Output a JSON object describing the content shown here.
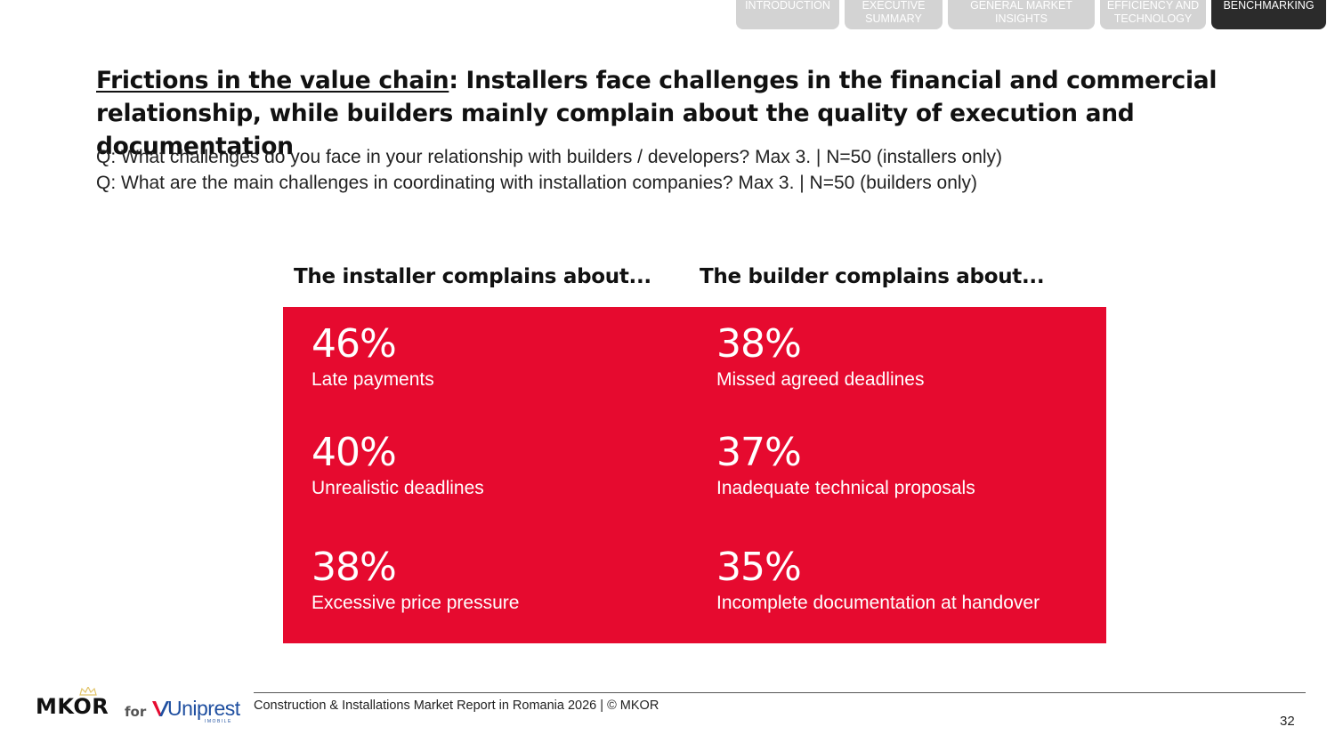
{
  "nav": {
    "tabs": [
      {
        "label": "INTRODUCTION"
      },
      {
        "label": "EXECUTIVE SUMMARY"
      },
      {
        "label": "GENERAL MARKET INSIGHTS"
      },
      {
        "label": "EFFICIENCY AND TECHNOLOGY"
      },
      {
        "label": "BENCHMARKING",
        "active": true
      }
    ]
  },
  "title": {
    "underlined": "Frictions in the value chain",
    "rest": ": Installers face challenges in the financial and commercial relationship, while builders mainly complain about the quality of execution and documentation"
  },
  "questions": [
    "Q: What challenges do you face in your relationship with builders / developers? Max 3. | N=50 (installers only)",
    "Q: What are the main challenges in coordinating with installation companies? Max 3. | N=50 (builders only)"
  ],
  "columns": {
    "installer": {
      "heading": "The installer complains about...",
      "items": [
        {
          "value": "46%",
          "label": "Late payments"
        },
        {
          "value": "40%",
          "label": "Unrealistic deadlines"
        },
        {
          "value": "38%",
          "label": "Excessive price pressure"
        }
      ]
    },
    "builder": {
      "heading": "The builder complains about...",
      "items": [
        {
          "value": "38%",
          "label": "Missed agreed deadlines"
        },
        {
          "value": "37%",
          "label": "Inadequate technical proposals"
        },
        {
          "value": "35%",
          "label": "Incomplete documentation at handover"
        }
      ]
    }
  },
  "colors": {
    "accent_red": "#e60a2f",
    "active_tab": "#2b2b2b",
    "inactive_tab": "#d3d3d3",
    "uniprest_blue": "#1f4fa0"
  },
  "footer": {
    "logo_mkor": "MKOR",
    "logo_for": "for",
    "logo_uniprest": "Uniprest",
    "logo_uniprest_sub": "IMOBILE",
    "source": "Construction & Installations Market Report in Romania 2026 | © MKOR",
    "page_number": "32"
  }
}
